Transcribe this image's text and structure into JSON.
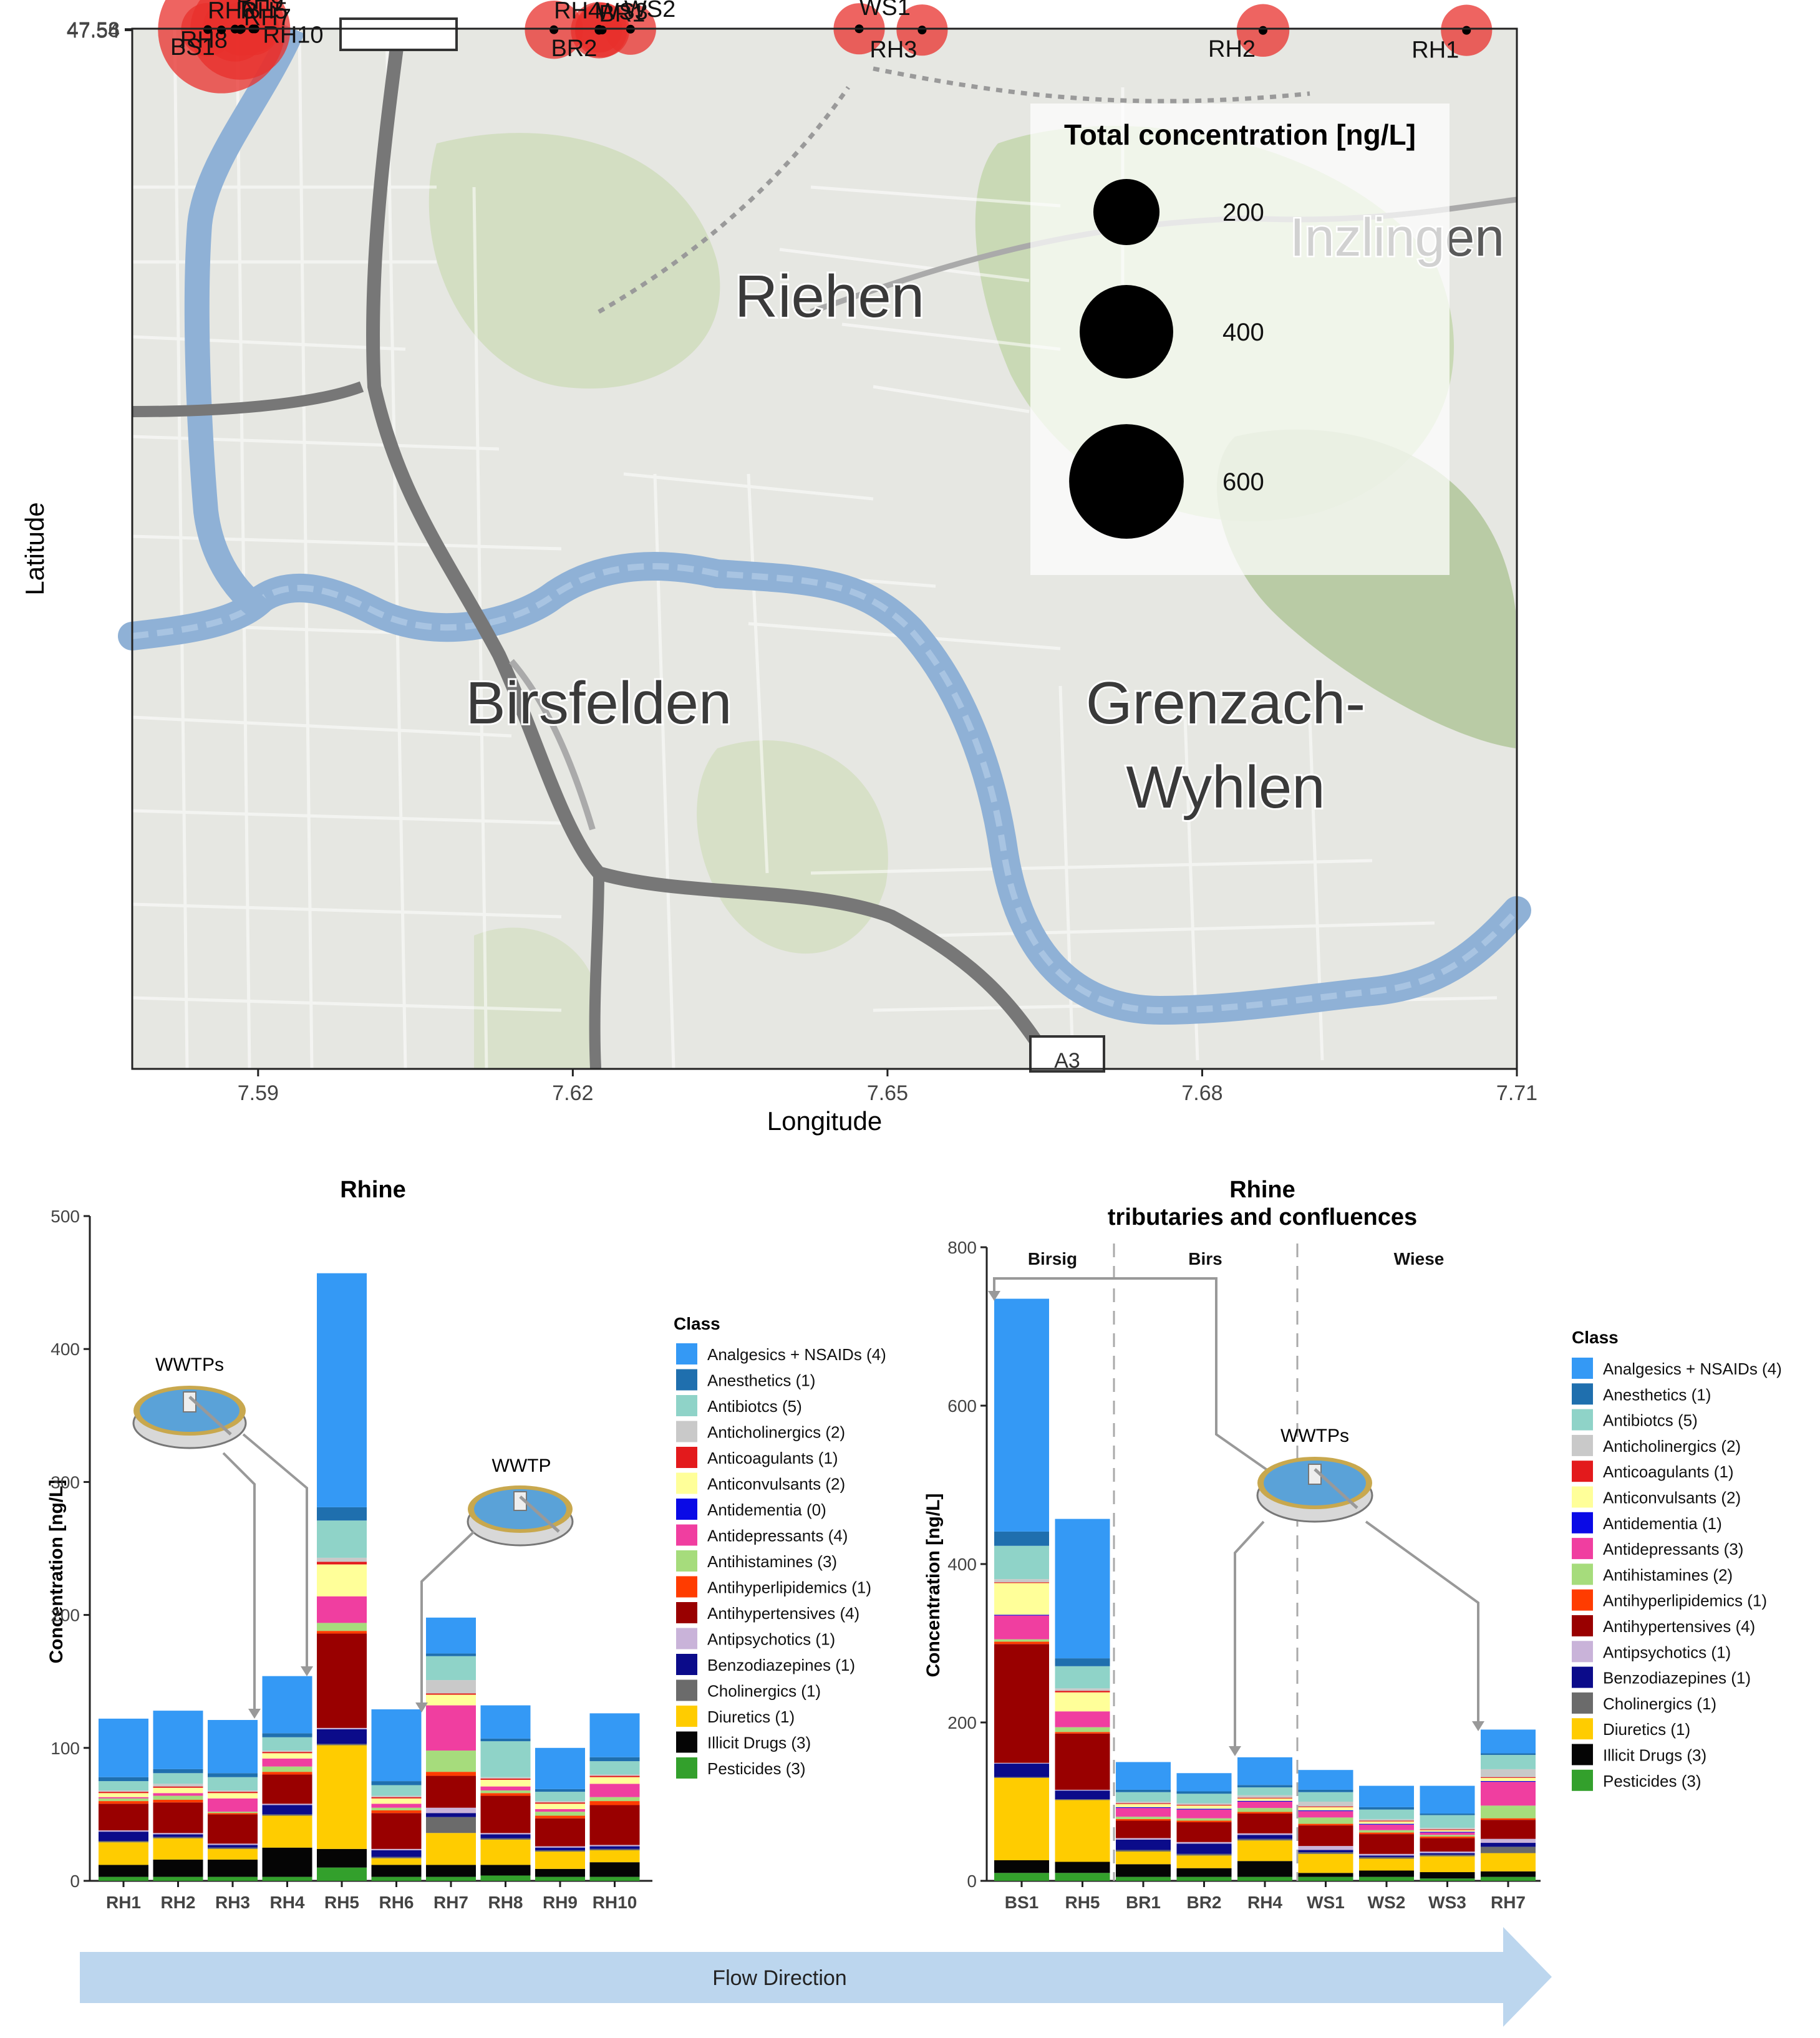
{
  "chart_data": [
    {
      "type": "scatter",
      "xlabel": "Longitude",
      "ylabel": "Latitude",
      "xlim": [
        7.578,
        7.71
      ],
      "ylim": [
        7.5298,
        47.5985
      ],
      "xticks": [
        "7.59",
        "7.62",
        "7.65",
        "7.68",
        "7.71"
      ],
      "yticks": [
        "47.54",
        "47.56",
        "47.58"
      ],
      "map_labels": [
        "Riehen",
        "Birsfelden",
        "Grenzach-",
        "Wyhlen",
        "Inzlingen",
        "A3"
      ],
      "legend": {
        "title": "Total concentration [ng/L]",
        "sizes": [
          "200",
          "400",
          "600"
        ],
        "placement": "top-right"
      },
      "point_color": "#e8302c",
      "points": [
        {
          "name": "WS1",
          "x": 7.6473,
          "y": 47.5938,
          "value": 120
        },
        {
          "name": "RH9",
          "x": 7.5897,
          "y": 47.5891,
          "value": 98
        },
        {
          "name": "RH10",
          "x": 7.5895,
          "y": 47.5889,
          "value": 127
        },
        {
          "name": "RH8",
          "x": 7.5884,
          "y": 47.5875,
          "value": 131
        },
        {
          "name": "RH7",
          "x": 7.5878,
          "y": 47.5828,
          "value": 193
        },
        {
          "name": "WS2",
          "x": 7.6255,
          "y": 47.5795,
          "value": 120
        },
        {
          "name": "WS3",
          "x": 7.6225,
          "y": 47.5762,
          "value": 100
        },
        {
          "name": "RH6",
          "x": 7.5852,
          "y": 47.5648,
          "value": 130
        },
        {
          "name": "RH5",
          "x": 7.5883,
          "y": 47.5603,
          "value": 457
        },
        {
          "name": "RH4",
          "x": 7.6182,
          "y": 47.558,
          "value": 155
        },
        {
          "name": "BS1",
          "x": 7.5865,
          "y": 47.551,
          "value": 735
        },
        {
          "name": "BR2",
          "x": 7.6228,
          "y": 47.5469,
          "value": 136
        },
        {
          "name": "RH3",
          "x": 7.6533,
          "y": 47.546,
          "value": 120
        },
        {
          "name": "BR1",
          "x": 7.6225,
          "y": 47.5382,
          "value": 145
        },
        {
          "name": "RH1",
          "x": 7.7052,
          "y": 47.5354,
          "value": 120
        },
        {
          "name": "RH2",
          "x": 7.6858,
          "y": 47.5318,
          "value": 127
        }
      ]
    },
    {
      "type": "bar",
      "stacked": true,
      "title": "Rhine",
      "ylabel": "Concentration [ng/L]",
      "ylim": [
        0,
        500
      ],
      "yticks": [
        0,
        100,
        200,
        300,
        400,
        500
      ],
      "categories": [
        "RH1",
        "RH2",
        "RH3",
        "RH4",
        "RH5",
        "RH6",
        "RH7",
        "RH8",
        "RH9",
        "RH10"
      ],
      "legend_title": "Class",
      "legend": [
        "Analgesics + NSAIDs (4)",
        "Anesthetics (1)",
        "Antibiotcs (5)",
        "Anticholinergics (2)",
        "Anticoagulants (1)",
        "Anticonvulsants (2)",
        "Antidementia (0)",
        "Antidepressants (4)",
        "Antihistamines (3)",
        "Antihyperlipidemics (1)",
        "Antihypertensives (4)",
        "Antipsychotics (1)",
        "Benzodiazepines (1)",
        "Cholinergics (1)",
        "Diuretics (1)",
        "Illicit Drugs (3)",
        "Pesticides (3)"
      ],
      "annotations": [
        "WWTPs",
        "WWTP"
      ],
      "series": [
        {
          "key": "pesticides",
          "values": [
            3,
            3,
            3,
            3,
            10,
            3,
            3,
            4,
            3,
            3
          ]
        },
        {
          "key": "illicit",
          "values": [
            9,
            13,
            13,
            22,
            14,
            9,
            9,
            8,
            6,
            11
          ]
        },
        {
          "key": "diuretics",
          "values": [
            17,
            16,
            8,
            24,
            78,
            5,
            24,
            19,
            13,
            9
          ]
        },
        {
          "key": "cholinergics",
          "values": [
            1,
            1,
            1,
            1,
            1,
            1,
            12,
            1,
            1,
            1
          ]
        },
        {
          "key": "benzodiazepines",
          "values": [
            7,
            2,
            2,
            7,
            11,
            5,
            3,
            3,
            2,
            2
          ]
        },
        {
          "key": "antipsychotics",
          "values": [
            1,
            1,
            1,
            1,
            1,
            1,
            4,
            1,
            1,
            1
          ]
        },
        {
          "key": "antihypertensives",
          "values": [
            20,
            23,
            22,
            22,
            71,
            27,
            24,
            28,
            21,
            30
          ]
        },
        {
          "key": "antihyperlipidemics",
          "values": [
            2,
            2,
            1,
            2,
            2,
            2,
            3,
            2,
            2,
            3
          ]
        },
        {
          "key": "antihistamines",
          "values": [
            2,
            3,
            1,
            4,
            6,
            2,
            16,
            2,
            3,
            3
          ]
        },
        {
          "key": "antidepressants",
          "values": [
            1,
            2,
            10,
            6,
            20,
            3,
            34,
            3,
            2,
            10
          ]
        },
        {
          "key": "antidementia",
          "values": [
            0,
            0,
            0,
            0,
            0,
            0,
            0,
            0,
            0,
            0
          ]
        },
        {
          "key": "anticonvulsants",
          "values": [
            3,
            4,
            4,
            4,
            24,
            4,
            8,
            5,
            4,
            5
          ]
        },
        {
          "key": "anticoagulants",
          "values": [
            1,
            1,
            1,
            1,
            2,
            1,
            1,
            1,
            1,
            1
          ]
        },
        {
          "key": "anticholinergics",
          "values": [
            1,
            2,
            1,
            1,
            3,
            1,
            10,
            1,
            1,
            1
          ]
        },
        {
          "key": "antibiotics",
          "values": [
            7,
            8,
            10,
            10,
            28,
            8,
            18,
            27,
            7,
            10
          ]
        },
        {
          "key": "anesthetics",
          "values": [
            3,
            3,
            3,
            3,
            10,
            3,
            2,
            2,
            2,
            3
          ]
        },
        {
          "key": "analgesics",
          "values": [
            44,
            44,
            40,
            43,
            176,
            54,
            27,
            25,
            31,
            33
          ]
        }
      ]
    },
    {
      "type": "bar",
      "stacked": true,
      "title": "Rhine",
      "subtitle": "tributaries and confluences",
      "ylabel": "Concentration [ng/L]",
      "ylim": [
        0,
        800
      ],
      "yticks": [
        0,
        200,
        400,
        600,
        800
      ],
      "categories": [
        "BS1",
        "RH5",
        "BR1",
        "BR2",
        "RH4",
        "WS1",
        "WS2",
        "WS3",
        "RH7"
      ],
      "panels": [
        "Birsig",
        "Birs",
        "Wiese"
      ],
      "legend_title": "Class",
      "legend": [
        "Analgesics + NSAIDs (4)",
        "Anesthetics (1)",
        "Antibiotcs (5)",
        "Anticholinergics (2)",
        "Anticoagulants (1)",
        "Anticonvulsants (2)",
        "Antidementia (1)",
        "Antidepressants (3)",
        "Antihistamines (2)",
        "Antihyperlipidemics (1)",
        "Antihypertensives (4)",
        "Antipsychotics (1)",
        "Benzodiazepines (1)",
        "Cholinergics (1)",
        "Diuretics (1)",
        "Illicit Drugs (3)",
        "Pesticides (3)"
      ],
      "annotations": [
        "WWTPs"
      ],
      "series": [
        {
          "key": "pesticides",
          "values": [
            10,
            10,
            5,
            5,
            5,
            5,
            5,
            3,
            5
          ]
        },
        {
          "key": "illicit",
          "values": [
            16,
            14,
            16,
            11,
            20,
            5,
            8,
            8,
            7
          ]
        },
        {
          "key": "diuretics",
          "values": [
            104,
            78,
            16,
            16,
            26,
            24,
            15,
            20,
            23
          ]
        },
        {
          "key": "cholinergics",
          "values": [
            1,
            1,
            2,
            2,
            2,
            2,
            2,
            2,
            8
          ]
        },
        {
          "key": "benzodiazepines",
          "values": [
            17,
            11,
            13,
            13,
            5,
            3,
            2,
            2,
            5
          ]
        },
        {
          "key": "antipsychotics",
          "values": [
            1,
            1,
            2,
            2,
            2,
            5,
            2,
            2,
            5
          ]
        },
        {
          "key": "antihypertensives",
          "values": [
            150,
            71,
            22,
            25,
            25,
            26,
            25,
            17,
            24
          ]
        },
        {
          "key": "antihyperlipidemics",
          "values": [
            3,
            2,
            2,
            2,
            2,
            2,
            2,
            2,
            2
          ]
        },
        {
          "key": "antihistamines",
          "values": [
            3,
            6,
            3,
            3,
            5,
            8,
            3,
            2,
            16
          ]
        },
        {
          "key": "antidepressants",
          "values": [
            30,
            20,
            11,
            11,
            8,
            8,
            7,
            3,
            30
          ]
        },
        {
          "key": "antidementia",
          "values": [
            1,
            0,
            1,
            1,
            1,
            1,
            1,
            1,
            1
          ]
        },
        {
          "key": "anticonvulsants",
          "values": [
            40,
            24,
            4,
            4,
            3,
            4,
            3,
            2,
            4
          ]
        },
        {
          "key": "anticoagulants",
          "values": [
            1,
            2,
            1,
            1,
            1,
            1,
            1,
            1,
            1
          ]
        },
        {
          "key": "anticholinergics",
          "values": [
            4,
            3,
            2,
            2,
            3,
            6,
            2,
            2,
            10
          ]
        },
        {
          "key": "antibiotics",
          "values": [
            42,
            28,
            12,
            12,
            10,
            12,
            12,
            16,
            18
          ]
        },
        {
          "key": "anesthetics",
          "values": [
            18,
            10,
            3,
            3,
            3,
            3,
            3,
            2,
            2
          ]
        },
        {
          "key": "analgesics",
          "values": [
            294,
            176,
            35,
            23,
            35,
            25,
            27,
            35,
            30
          ]
        }
      ]
    }
  ],
  "colors": {
    "analgesics": "#3499f5",
    "anesthetics": "#1f6fae",
    "antibiotics": "#8fd3c8",
    "anticholinergics": "#c9c9c9",
    "anticoagulants": "#e31a1c",
    "anticonvulsants": "#ffff99",
    "antidementia": "#0a0ae6",
    "antidepressants": "#f03ea0",
    "antihistamines": "#a6dc7c",
    "antihyperlipidemics": "#ff3c00",
    "antihypertensives": "#990000",
    "antipsychotics": "#c9b3d9",
    "benzodiazepines": "#0b0b8a",
    "cholinergics": "#6b6b6b",
    "diuretics": "#ffcc00",
    "illicit": "#050505",
    "pesticides": "#33a02c"
  },
  "flow_arrow": {
    "label": "Flow Direction"
  }
}
